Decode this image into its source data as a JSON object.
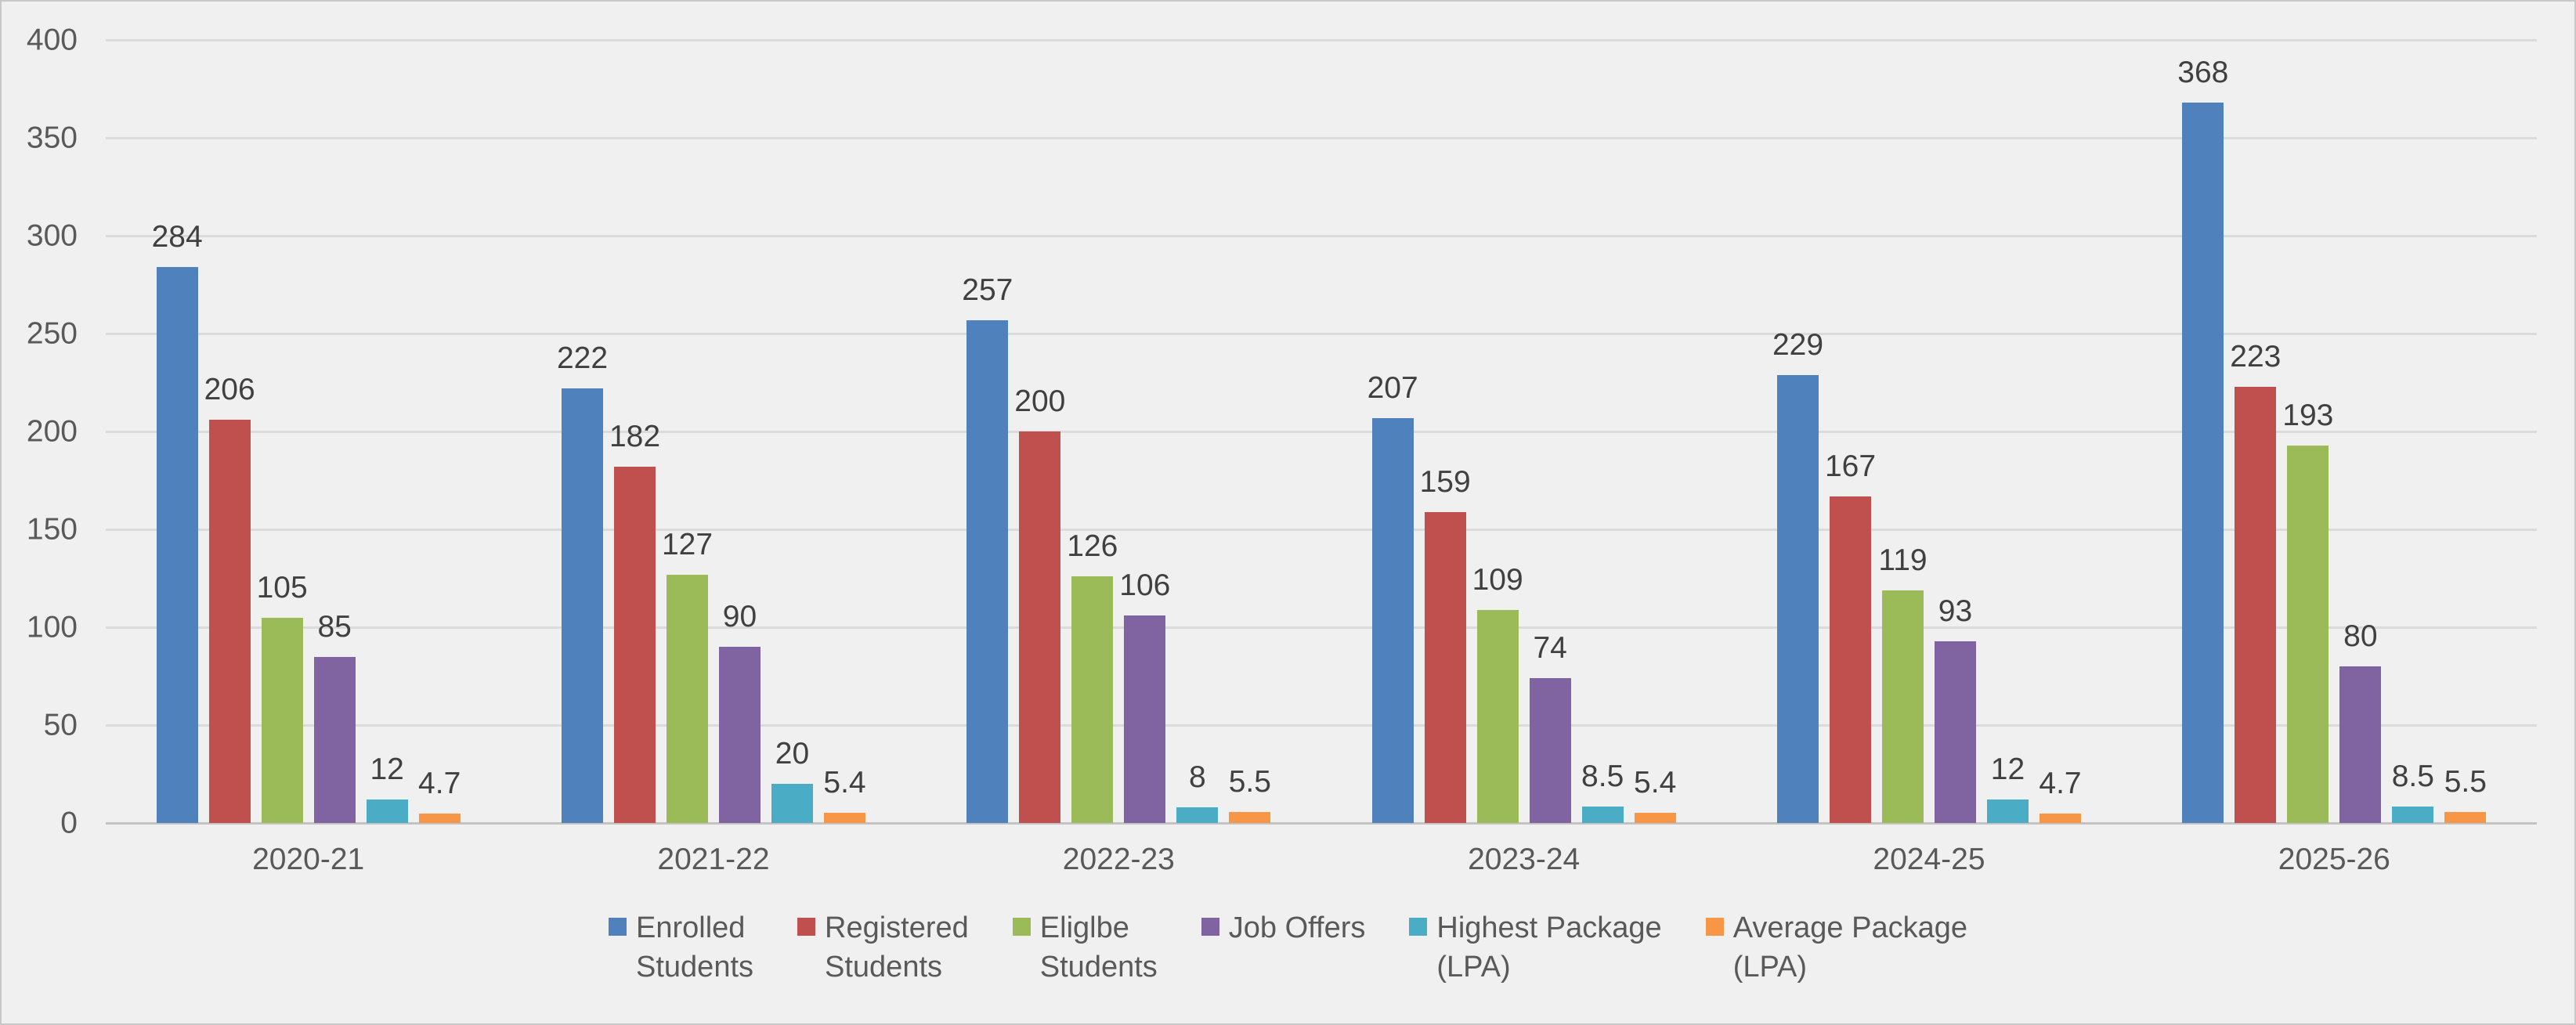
{
  "chart_data": {
    "type": "bar",
    "title": "",
    "categories": [
      "2020-21",
      "2021-22",
      "2022-23",
      "2023-24",
      "2024-25",
      "2025-26"
    ],
    "series": [
      {
        "name": "Enrolled Students",
        "legend_lines": [
          "Enrolled",
          "Students"
        ],
        "color": "#4F81BD",
        "values": [
          284,
          222,
          257,
          207,
          229,
          368
        ]
      },
      {
        "name": "Registered Students",
        "legend_lines": [
          "Registered",
          "Students"
        ],
        "color": "#C0504D",
        "values": [
          206,
          182,
          200,
          159,
          167,
          223
        ]
      },
      {
        "name": "Eliglbe Students",
        "legend_lines": [
          "Eliglbe",
          "Students"
        ],
        "color": "#9BBB59",
        "values": [
          105,
          127,
          126,
          109,
          119,
          193
        ]
      },
      {
        "name": "Job Offers",
        "legend_lines": [
          "Job Offers"
        ],
        "color": "#8064A2",
        "values": [
          85,
          90,
          106,
          74,
          93,
          80
        ]
      },
      {
        "name": "Highest Package (LPA)",
        "legend_lines": [
          "Highest Package",
          "(LPA)"
        ],
        "color": "#4BACC6",
        "values": [
          12,
          20,
          8,
          8.5,
          12,
          8.5
        ]
      },
      {
        "name": "Average Package (LPA)",
        "legend_lines": [
          "Average Package",
          "(LPA)"
        ],
        "color": "#F79646",
        "values": [
          4.7,
          5.4,
          5.5,
          5.4,
          4.7,
          5.5
        ]
      }
    ],
    "y_axis": {
      "min": 0,
      "max": 400,
      "step": 50,
      "tick_labels": [
        "400",
        "350",
        "300",
        "250",
        "200",
        "150",
        "100",
        "50",
        "0"
      ]
    },
    "grid": true,
    "data_labels": true,
    "legend_position": "bottom"
  },
  "style": {
    "background": "#F0F0F0",
    "border": "#C8C8C8",
    "gridline": "#DBDBDB",
    "axis_line": "#C3C3C3",
    "axis_text": "#595959",
    "data_label_text": "#404040",
    "legend_text": "#595959"
  }
}
